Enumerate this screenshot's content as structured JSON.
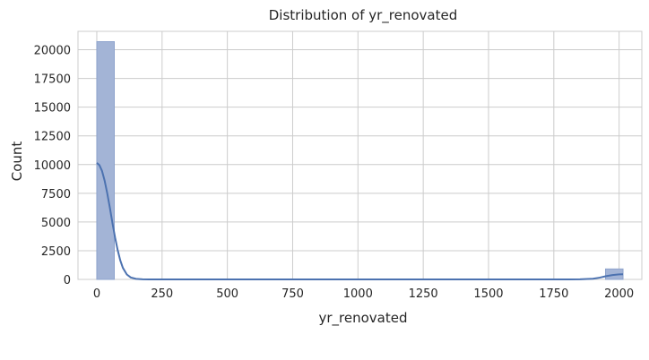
{
  "chart_data": {
    "type": "bar",
    "subtype": "histogram",
    "title": "Distribution of yr_renovated",
    "xlabel": "yr_renovated",
    "ylabel": "Count",
    "xlim": [
      -72,
      2087
    ],
    "ylim": [
      0,
      21600
    ],
    "x_ticks": [
      0,
      250,
      500,
      750,
      1000,
      1250,
      1500,
      1750,
      2000
    ],
    "y_ticks": [
      0,
      2500,
      5000,
      7500,
      10000,
      12500,
      15000,
      17500,
      20000
    ],
    "grid": true,
    "bin_width": 67,
    "bins": [
      {
        "x0": 0,
        "x1": 67,
        "count": 20700
      },
      {
        "x0": 1948,
        "x1": 2015,
        "count": 910
      }
    ],
    "kde": {
      "x": [
        0,
        10,
        20,
        30,
        40,
        50,
        60,
        70,
        80,
        90,
        100,
        115,
        130,
        150,
        175,
        200,
        250,
        500,
        1000,
        1500,
        1800,
        1850,
        1900,
        1925,
        1950,
        1975,
        2000,
        2015
      ],
      "y": [
        10150,
        9950,
        9450,
        8600,
        7500,
        6250,
        4900,
        3650,
        2550,
        1650,
        1000,
        430,
        170,
        50,
        12,
        0,
        0,
        0,
        0,
        0,
        0,
        10,
        60,
        150,
        280,
        380,
        440,
        450
      ]
    },
    "colors": {
      "bar_fill": "#a3b4d6",
      "bar_edge": "#8ea3cc",
      "kde_line": "#4c72b0",
      "grid": "#cccccc"
    }
  }
}
